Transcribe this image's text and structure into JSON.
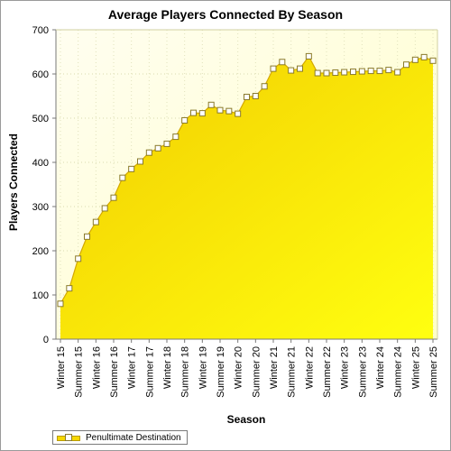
{
  "chart_data": {
    "type": "area",
    "title": "Average Players Connected By Season",
    "xlabel": "Season",
    "ylabel": "Players Connected",
    "ylim": [
      0,
      700
    ],
    "yticks": [
      0,
      100,
      200,
      300,
      400,
      500,
      600,
      700
    ],
    "grid": true,
    "legend_position": "bottom-left",
    "categories": [
      "Winter 15",
      "Summer 15",
      "Winter 16",
      "Summer 16",
      "Winter 17",
      "Summer 17",
      "Winter 18",
      "Summer 18",
      "Winter 19",
      "Summer 19",
      "Winter 20",
      "Summer 20",
      "Winter 21",
      "Summer 21",
      "Winter 22",
      "Summer 22",
      "Winter 23",
      "Summer 23",
      "Winter 24",
      "Summer 24",
      "Winter 25",
      "Summer 25"
    ],
    "series": [
      {
        "name": "Penultimate Destination",
        "color": "#ffe200",
        "x": [
          0,
          0.5,
          1,
          1.5,
          2,
          2.5,
          3,
          3.5,
          4,
          4.5,
          5,
          5.5,
          6,
          6.5,
          7,
          7.5,
          8,
          8.5,
          9,
          9.5,
          10,
          10.5,
          11,
          11.5,
          12,
          12.5,
          13,
          13.5,
          14,
          14.5,
          15,
          15.5,
          16,
          16.5,
          17,
          17.5,
          18,
          18.5,
          19,
          19.5,
          20,
          20.5,
          21
        ],
        "values": [
          80,
          115,
          182,
          232,
          265,
          296,
          320,
          365,
          385,
          402,
          422,
          432,
          442,
          458,
          495,
          512,
          511,
          530,
          518,
          516,
          510,
          548,
          550,
          572,
          612,
          627,
          608,
          612,
          640,
          602,
          602,
          603,
          604,
          605,
          606,
          607,
          607,
          609,
          604,
          621,
          632,
          638,
          630
        ]
      }
    ]
  }
}
